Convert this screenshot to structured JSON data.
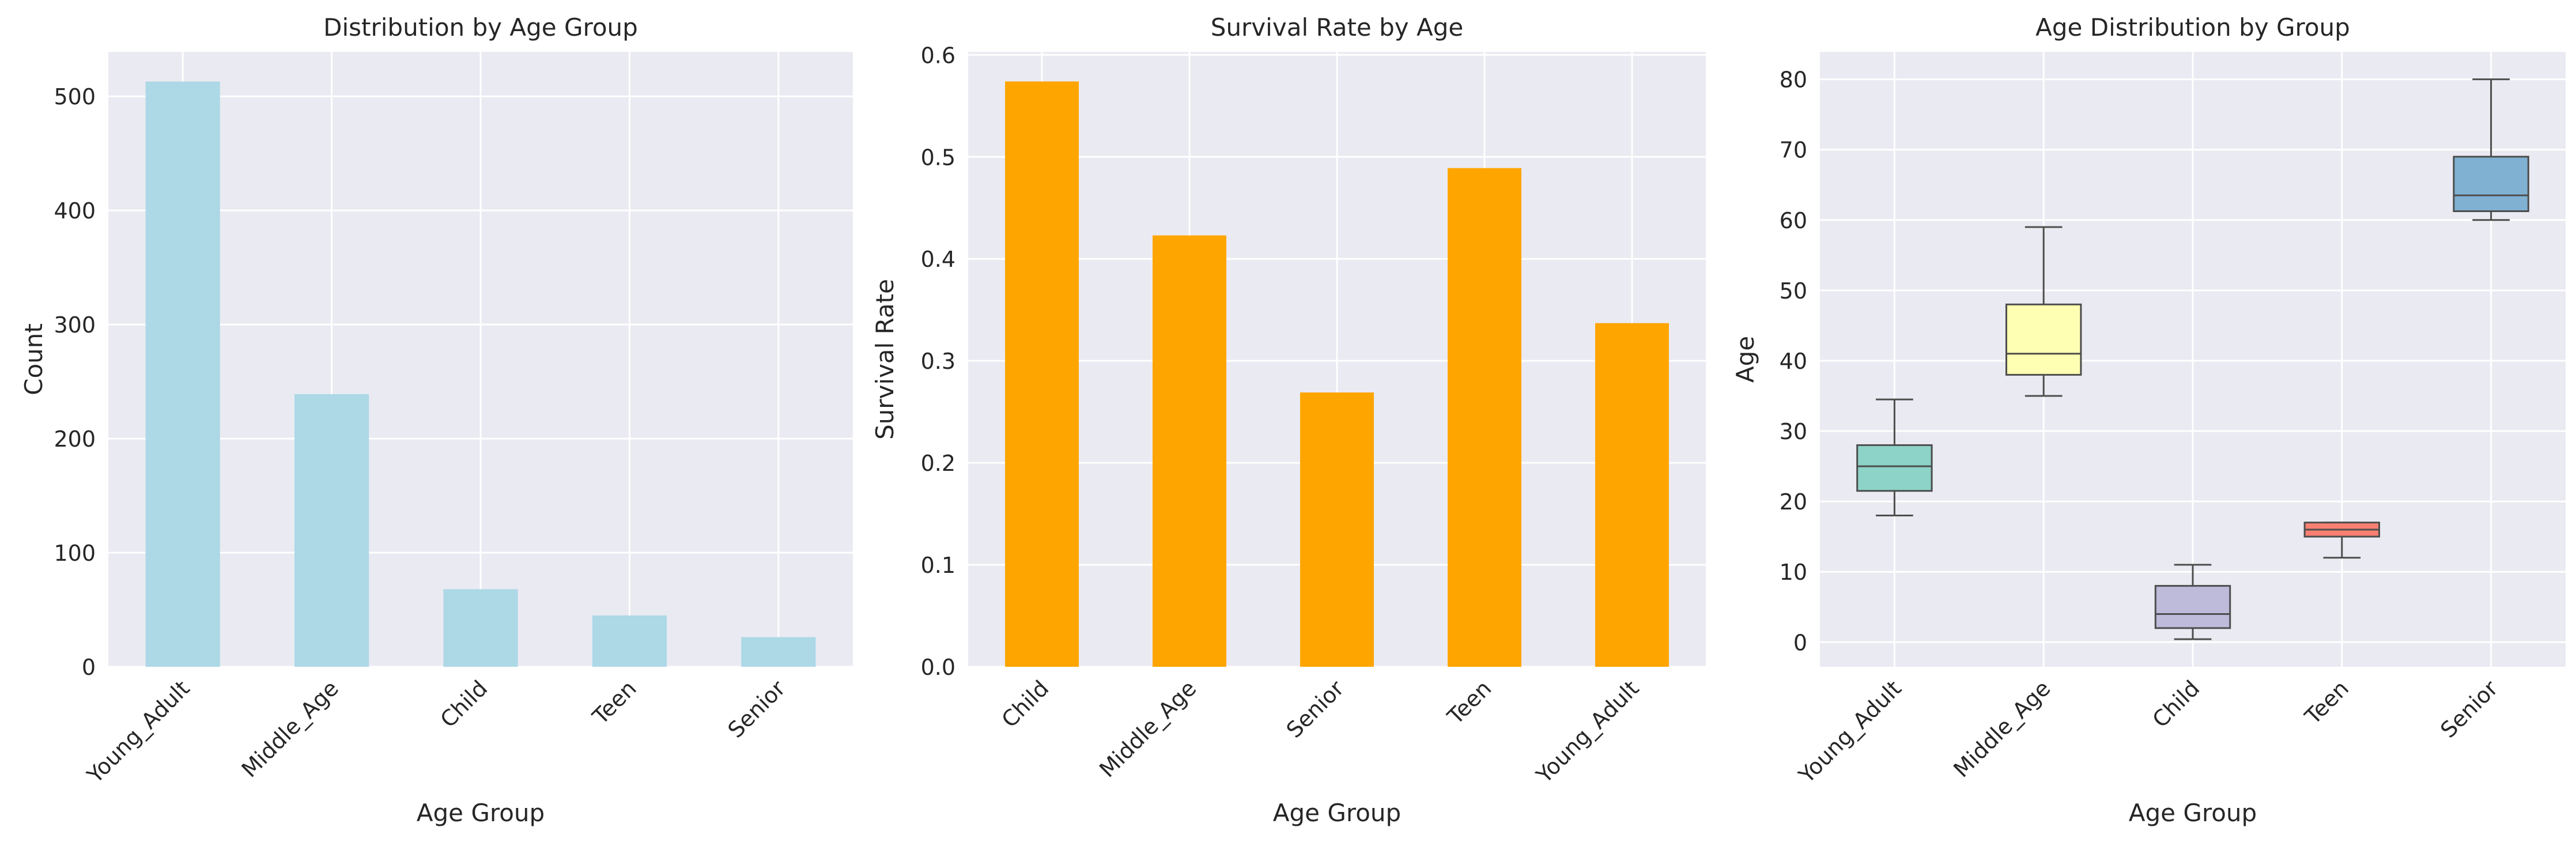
{
  "chart_data": [
    {
      "type": "bar",
      "title": "Distribution by Age Group",
      "xlabel": "Age Group",
      "ylabel": "Count",
      "categories": [
        "Young_Adult",
        "Middle_Age",
        "Child",
        "Teen",
        "Senior"
      ],
      "values": [
        513,
        239,
        68,
        45,
        26
      ],
      "ylim": [
        0,
        539
      ],
      "yticks": [
        0,
        100,
        200,
        300,
        400,
        500
      ],
      "ytick_labels": [
        "0",
        "100",
        "200",
        "300",
        "400",
        "500"
      ],
      "color": "#add8e6",
      "grid": true
    },
    {
      "type": "bar",
      "title": "Survival Rate by Age",
      "xlabel": "Age Group",
      "ylabel": "Survival Rate",
      "categories": [
        "Child",
        "Middle_Age",
        "Senior",
        "Teen",
        "Young_Adult"
      ],
      "values": [
        0.574,
        0.423,
        0.269,
        0.489,
        0.337
      ],
      "ylim": [
        0,
        0.603
      ],
      "yticks": [
        0,
        0.1,
        0.2,
        0.3,
        0.4,
        0.5,
        0.6
      ],
      "ytick_labels": [
        "0.0",
        "0.1",
        "0.2",
        "0.3",
        "0.4",
        "0.5",
        "0.6"
      ],
      "color": "#ffa500",
      "grid": true
    },
    {
      "type": "box",
      "title": "Age Distribution by Group",
      "xlabel": "Age Group",
      "ylabel": "Age",
      "categories": [
        "Young_Adult",
        "Middle_Age",
        "Child",
        "Teen",
        "Senior"
      ],
      "boxes": [
        {
          "whislo": 18,
          "q1": 21.5,
          "med": 25,
          "q3": 28,
          "whishi": 34.5,
          "color": "#8dd3c7"
        },
        {
          "whislo": 35,
          "q1": 38,
          "med": 41,
          "q3": 48,
          "whishi": 59,
          "color": "#ffffb3"
        },
        {
          "whislo": 0.42,
          "q1": 2,
          "med": 4,
          "q3": 8,
          "whishi": 11,
          "color": "#bebada"
        },
        {
          "whislo": 12,
          "q1": 15,
          "med": 16,
          "q3": 17,
          "whishi": 17,
          "color": "#fb8072"
        },
        {
          "whislo": 60,
          "q1": 61.25,
          "med": 63.5,
          "q3": 69,
          "whishi": 80,
          "color": "#80b1d3"
        }
      ],
      "ylim": [
        -3.5,
        83.9
      ],
      "yticks": [
        0,
        10,
        20,
        30,
        40,
        50,
        60,
        70,
        80
      ],
      "ytick_labels": [
        "0",
        "10",
        "20",
        "30",
        "40",
        "50",
        "60",
        "70",
        "80"
      ],
      "grid": true
    }
  ]
}
